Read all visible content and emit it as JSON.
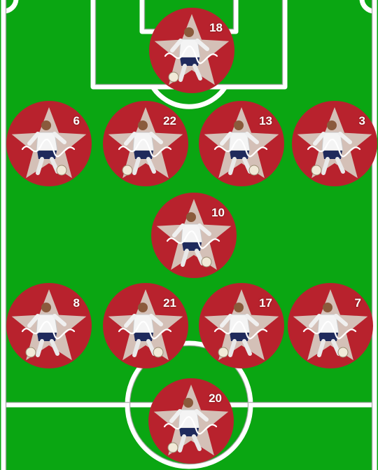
{
  "colors": {
    "pitch_green": "#0aa612",
    "line_white": "#ffffff",
    "token_red": "#b8222d",
    "star_fill": "#d8dcd0"
  },
  "formation": {
    "players": [
      {
        "id": "gk",
        "number": "18",
        "role": "goalkeeper",
        "icon": "soccer-ball-icon"
      },
      {
        "id": "d1",
        "number": "6",
        "role": "defender",
        "icon": "soccer-ball-icon"
      },
      {
        "id": "d2",
        "number": "22",
        "role": "defender",
        "icon": "soccer-ball-icon"
      },
      {
        "id": "d3",
        "number": "13",
        "role": "defender",
        "icon": "soccer-ball-icon"
      },
      {
        "id": "d4",
        "number": "3",
        "role": "defender",
        "icon": "soccer-ball-icon"
      },
      {
        "id": "dm",
        "number": "10",
        "role": "midfielder",
        "icon": "soccer-ball-icon"
      },
      {
        "id": "m1",
        "number": "8",
        "role": "midfielder",
        "icon": "soccer-ball-icon"
      },
      {
        "id": "m2",
        "number": "21",
        "role": "midfielder",
        "icon": "soccer-ball-icon"
      },
      {
        "id": "m3",
        "number": "17",
        "role": "midfielder",
        "icon": "soccer-ball-icon"
      },
      {
        "id": "m4",
        "number": "7",
        "role": "midfielder",
        "icon": "soccer-ball-icon"
      },
      {
        "id": "fw",
        "number": "20",
        "role": "forward",
        "icon": "soccer-ball-icon"
      }
    ]
  }
}
